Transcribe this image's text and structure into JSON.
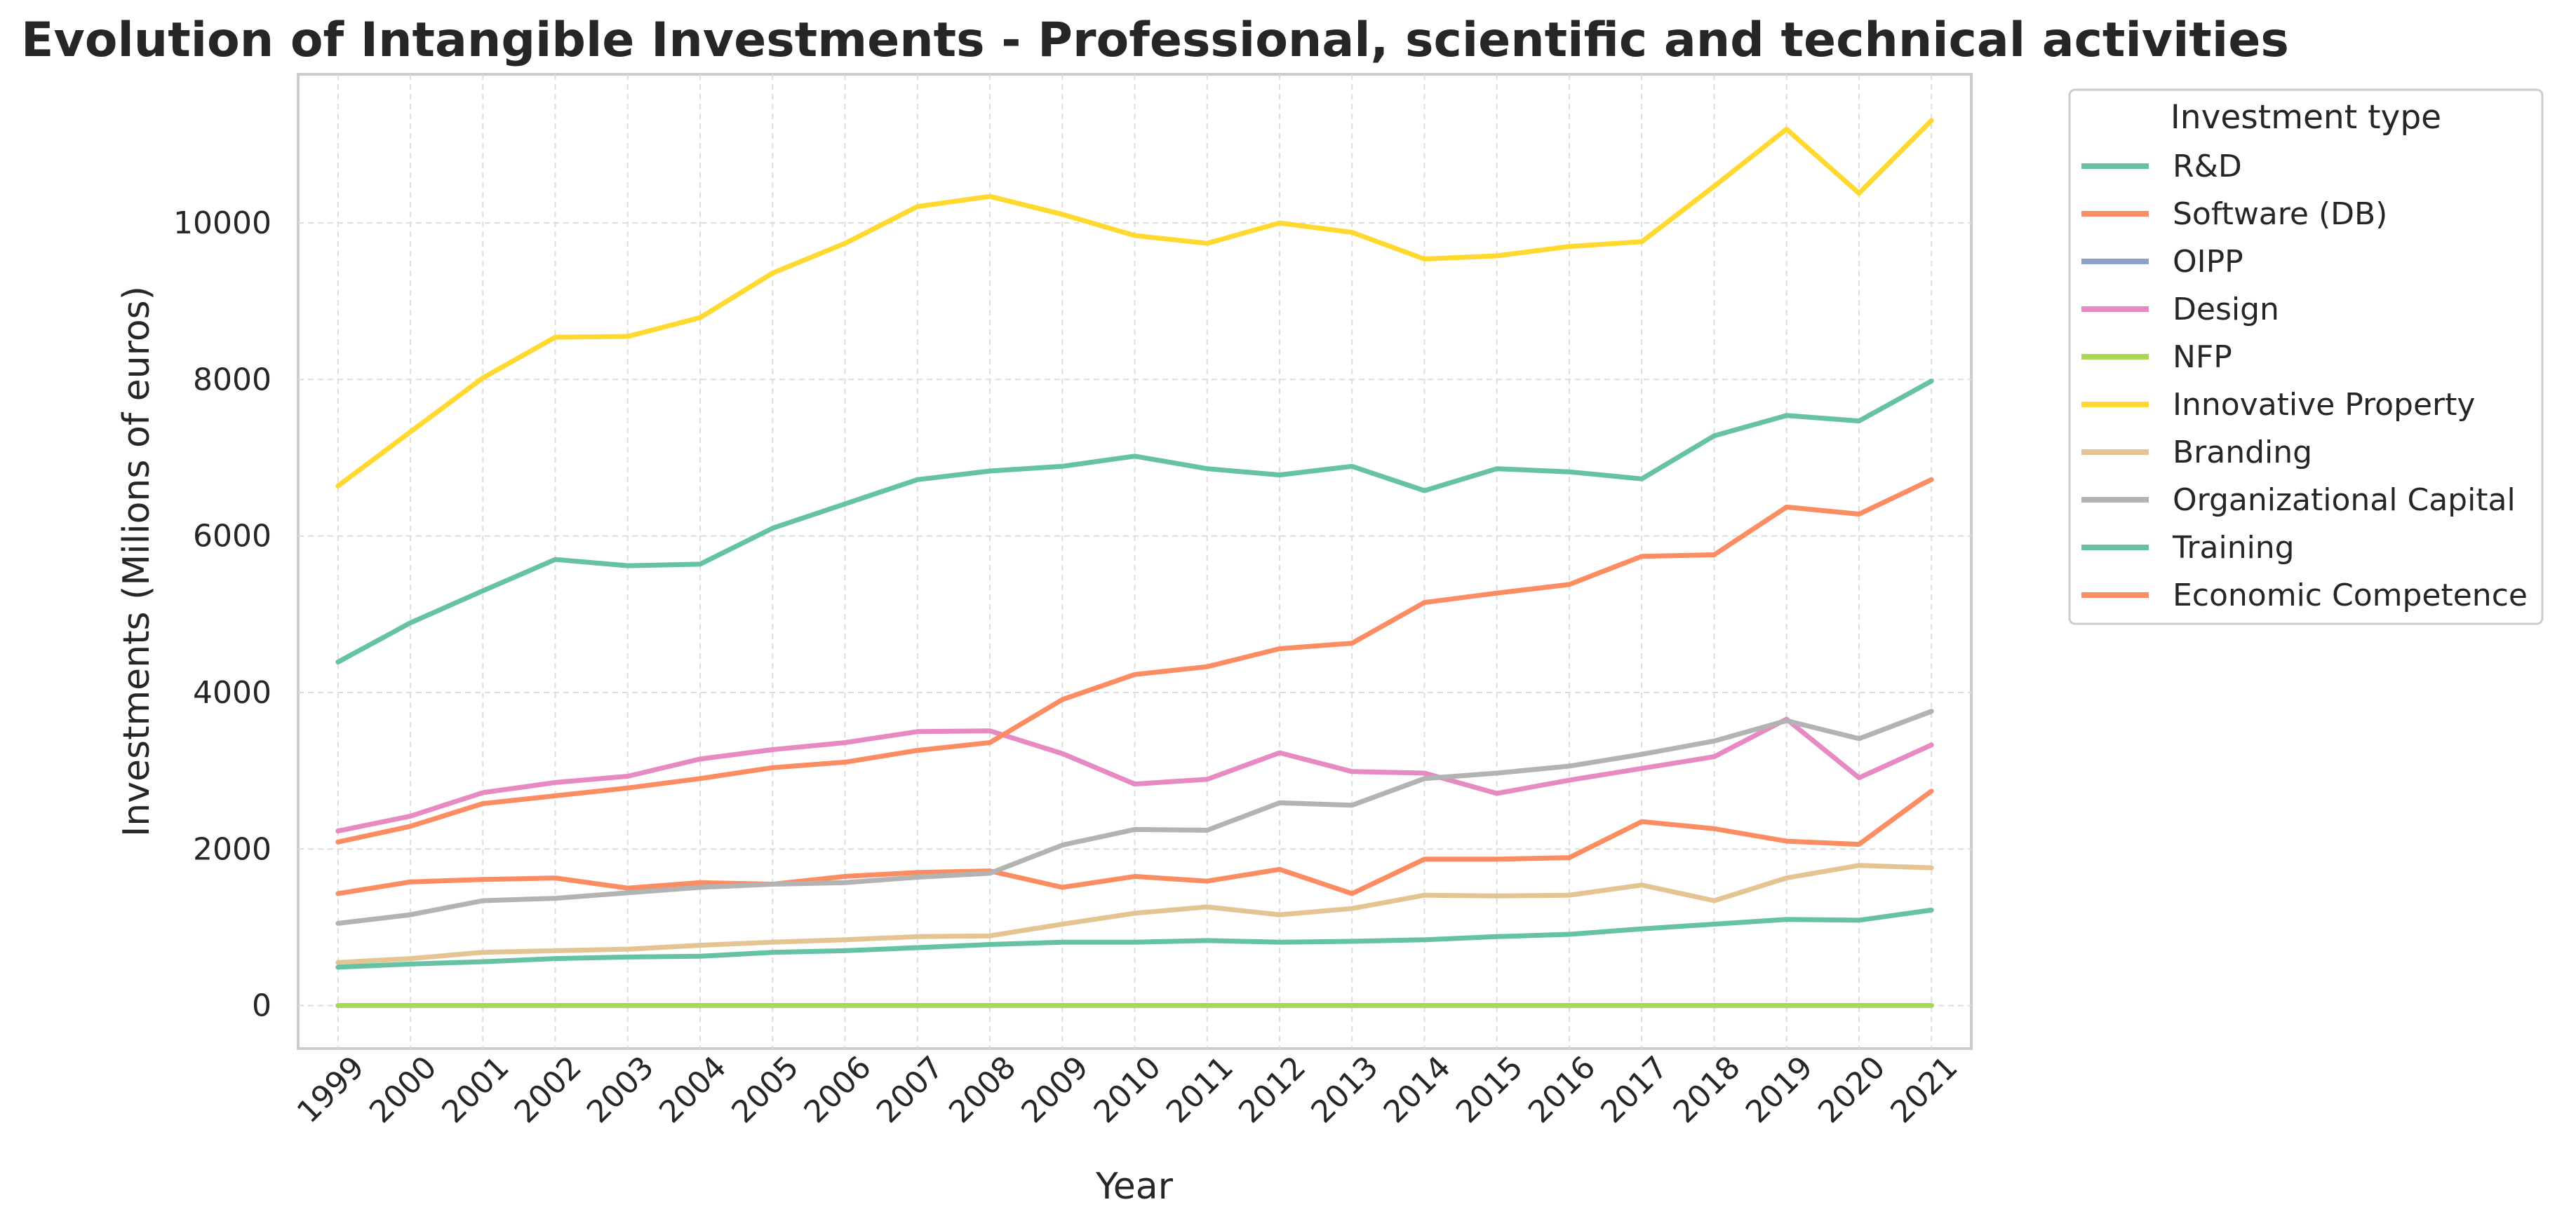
{
  "chart_data": {
    "type": "line",
    "title": "Evolution of Intangible Investments - Professional, scientific and technical activities",
    "xlabel": "Year",
    "ylabel": "Investments (Milions of euros)",
    "x": [
      "1999",
      "2000",
      "2001",
      "2002",
      "2003",
      "2004",
      "2005",
      "2006",
      "2007",
      "2008",
      "2009",
      "2010",
      "2011",
      "2012",
      "2013",
      "2014",
      "2015",
      "2016",
      "2017",
      "2018",
      "2019",
      "2020",
      "2021"
    ],
    "ylim": [
      -550,
      11900
    ],
    "yticks": [
      0,
      2000,
      4000,
      6000,
      8000,
      10000
    ],
    "ytick_labels": [
      "0",
      "2000",
      "4000",
      "6000",
      "8000",
      "10000"
    ],
    "grid": true,
    "legend_title": "Investment type",
    "legend_position": "outside upper right",
    "series": [
      {
        "name": "R&D",
        "color": "#66c2a5",
        "values": [
          4390,
          4890,
          5300,
          5700,
          5620,
          5640,
          6100,
          6410,
          6720,
          6830,
          6890,
          7020,
          6860,
          6780,
          6890,
          6580,
          6860,
          6820,
          6730,
          7280,
          7540,
          7470,
          7980
        ]
      },
      {
        "name": "Software (DB)",
        "color": "#fc8d62",
        "values": [
          1430,
          1580,
          1610,
          1630,
          1500,
          1570,
          1550,
          1650,
          1700,
          1720,
          1510,
          1650,
          1590,
          1740,
          1430,
          1870,
          1870,
          1890,
          2350,
          2260,
          2100,
          2060,
          2740
        ]
      },
      {
        "name": "OIPP",
        "color": "#8da0cb",
        "values": [
          0,
          0,
          0,
          0,
          0,
          0,
          0,
          0,
          0,
          0,
          0,
          0,
          0,
          0,
          0,
          0,
          0,
          0,
          0,
          0,
          0,
          0,
          0
        ]
      },
      {
        "name": "Design",
        "color": "#e78ac3",
        "values": [
          2230,
          2420,
          2720,
          2850,
          2930,
          3150,
          3270,
          3360,
          3500,
          3510,
          3220,
          2830,
          2890,
          3230,
          2990,
          2970,
          2710,
          2880,
          3030,
          3180,
          3660,
          2910,
          3330
        ]
      },
      {
        "name": "NFP",
        "color": "#a6d854",
        "values": [
          0,
          0,
          0,
          0,
          0,
          0,
          0,
          0,
          0,
          0,
          0,
          0,
          0,
          0,
          0,
          0,
          0,
          0,
          0,
          0,
          0,
          0,
          0
        ]
      },
      {
        "name": "Innovative Property",
        "color": "#ffd92f",
        "values": [
          6640,
          7330,
          8020,
          8540,
          8550,
          8790,
          9360,
          9740,
          10210,
          10340,
          10110,
          9840,
          9740,
          10000,
          9880,
          9540,
          9580,
          9700,
          9760,
          10470,
          11200,
          10380,
          11310
        ]
      },
      {
        "name": "Branding",
        "color": "#e5c494",
        "values": [
          550,
          600,
          680,
          700,
          720,
          770,
          810,
          840,
          880,
          890,
          1040,
          1180,
          1260,
          1160,
          1240,
          1410,
          1400,
          1410,
          1540,
          1340,
          1630,
          1790,
          1760
        ]
      },
      {
        "name": "Organizational Capital",
        "color": "#b3b3b3",
        "values": [
          1050,
          1160,
          1340,
          1370,
          1440,
          1510,
          1550,
          1570,
          1640,
          1690,
          2050,
          2250,
          2240,
          2590,
          2560,
          2900,
          2970,
          3060,
          3210,
          3380,
          3640,
          3410,
          3760
        ]
      },
      {
        "name": "Training",
        "color": "#66c2a5",
        "values": [
          490,
          530,
          560,
          600,
          620,
          630,
          680,
          700,
          740,
          780,
          810,
          810,
          830,
          810,
          820,
          840,
          880,
          910,
          980,
          1040,
          1100,
          1090,
          1220
        ]
      },
      {
        "name": "Economic Competence",
        "color": "#fc8d62",
        "values": [
          2090,
          2290,
          2580,
          2680,
          2780,
          2900,
          3040,
          3110,
          3260,
          3360,
          3910,
          4230,
          4330,
          4560,
          4630,
          5150,
          5270,
          5380,
          5740,
          5760,
          6370,
          6280,
          6720
        ]
      }
    ]
  }
}
